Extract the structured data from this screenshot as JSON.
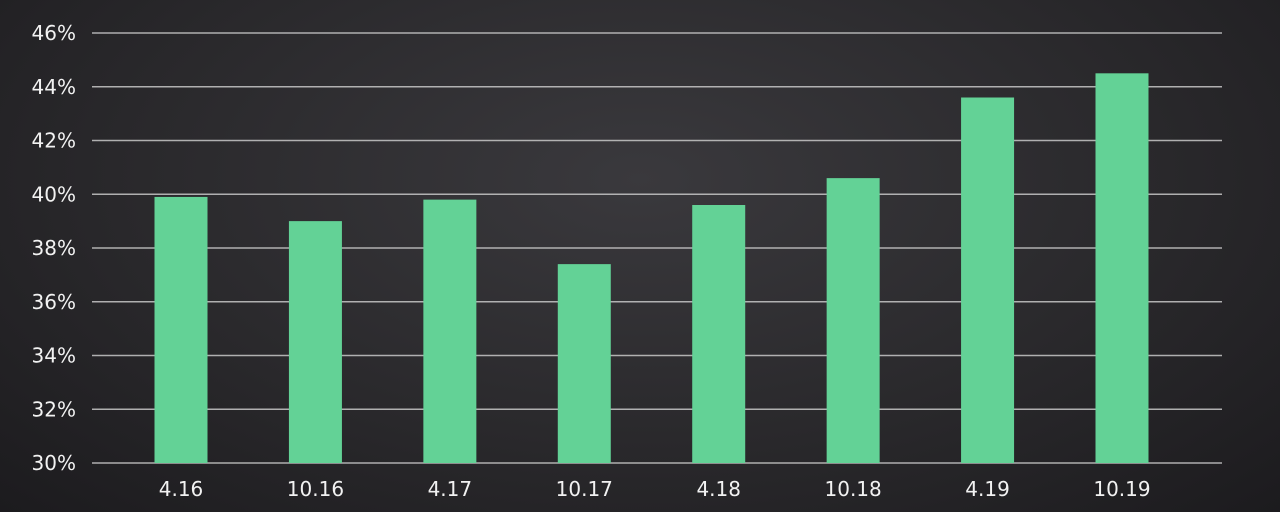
{
  "chart_data": {
    "type": "bar",
    "categories": [
      "4.16",
      "10.16",
      "4.17",
      "10.17",
      "4.18",
      "10.18",
      "4.19",
      "10.19"
    ],
    "values": [
      39.9,
      39.0,
      39.8,
      37.4,
      39.6,
      40.6,
      43.6,
      44.5
    ],
    "y_ticks": [
      "30%",
      "32%",
      "34%",
      "36%",
      "38%",
      "40%",
      "42%",
      "44%",
      "46%"
    ],
    "ylim": [
      30,
      46
    ],
    "grid": true,
    "bar_color": "#63d296",
    "grid_color": "#c8c8c8",
    "text_color": "#f2f2f2",
    "title": "",
    "xlabel": "",
    "ylabel": ""
  }
}
